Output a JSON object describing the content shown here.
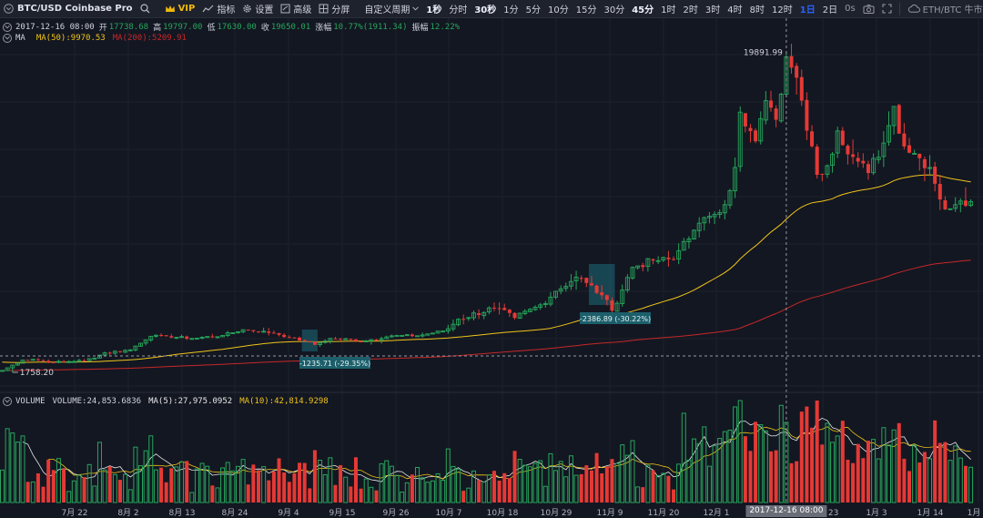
{
  "toolbar": {
    "symbol": "BTC/USD Coinbase Pro",
    "vip": "VIP",
    "indicators": "指标",
    "settings": "设置",
    "advanced": "高级",
    "split": "分屏",
    "custom_period": "自定义周期",
    "intervals": [
      {
        "label": "1秒",
        "state": "strong"
      },
      {
        "label": "分时",
        "state": "normal"
      },
      {
        "label": "30秒",
        "state": "strong"
      },
      {
        "label": "1分",
        "state": "normal"
      },
      {
        "label": "5分",
        "state": "normal"
      },
      {
        "label": "10分",
        "state": "normal"
      },
      {
        "label": "15分",
        "state": "normal"
      },
      {
        "label": "30分",
        "state": "normal"
      },
      {
        "label": "45分",
        "state": "strong"
      },
      {
        "label": "1时",
        "state": "normal"
      },
      {
        "label": "2时",
        "state": "normal"
      },
      {
        "label": "3时",
        "state": "normal"
      },
      {
        "label": "4时",
        "state": "normal"
      },
      {
        "label": "8时",
        "state": "normal"
      },
      {
        "label": "12时",
        "state": "normal"
      },
      {
        "label": "1日",
        "state": "active"
      },
      {
        "label": "2日",
        "state": "normal"
      }
    ],
    "countdown": "0s",
    "pair_switch": "ETH/BTC 牛市",
    "colors": {
      "active_interval": "#2962ff",
      "vip": "#f0b90b"
    }
  },
  "ohlc_legend": {
    "datetime": "2017-12-16 08:00",
    "open_label": "开",
    "open": "17738.68",
    "high_label": "高",
    "high": "19797.00",
    "low_label": "低",
    "low": "17630.00",
    "close_label": "收",
    "close": "19650.01",
    "change_label": "涨幅",
    "change": "10.77%(1911.34)",
    "amplitude_label": "振幅",
    "amplitude": "12.22%"
  },
  "ma_legend": {
    "name": "MA",
    "ma50": "MA(50):9970.53",
    "ma200": "MA(200):5209.91",
    "ma50_color": "#f0c419",
    "ma200_color": "#c62828"
  },
  "volume_legend": {
    "name": "VOLUME",
    "volume": "VOLUME:24,853.6836",
    "ma5": "MA(5):27,975.0952",
    "ma10": "MA(10):42,814.9298",
    "ma5_color": "#e8e8e8",
    "ma10_color": "#f0c419"
  },
  "annotations": {
    "high_marker": "19891.99",
    "low_marker": "1758.20",
    "range1": "-1235.71 (-29.35%)",
    "range2": "-2386.89 (-30.22%)"
  },
  "x_axis": {
    "labels": [
      "7月 22",
      "8月 2",
      "8月 13",
      "8月 24",
      "9月 4",
      "9月 15",
      "9月 26",
      "10月 7",
      "10月 18",
      "10月 29",
      "11月 9",
      "11月 20",
      "12月 1",
      "12月 23",
      "1月 3",
      "1月 14",
      "1月"
    ],
    "crosshair_label": "2017-12-16 08:00"
  },
  "chart_data": {
    "type": "candlestick",
    "title": "BTC/USD Coinbase Pro",
    "interval": "1日",
    "date_range": [
      "2017-07-16",
      "2018-01-21"
    ],
    "price_range": [
      1500,
      21000
    ],
    "up_color": "#26a65b",
    "down_color": "#e53935",
    "extremes": {
      "high": 19891.99,
      "low": 1758.2
    },
    "crosshair": {
      "date": "2017-12-16",
      "open": 17738.68,
      "high": 19797.0,
      "low": 17630.0,
      "close": 19650.01
    },
    "measured_ranges": [
      {
        "label": "-1235.71 (-29.35%)",
        "start": "2017-09-13",
        "end": "2017-09-15"
      },
      {
        "label": "-2386.89 (-30.22%)",
        "start": "2017-11-08",
        "end": "2017-11-12"
      }
    ],
    "anchors": [
      [
        "2017-07-16",
        1910
      ],
      [
        "2017-07-20",
        2750
      ],
      [
        "2017-07-22",
        2800
      ],
      [
        "2017-07-26",
        2560
      ],
      [
        "2017-08-01",
        2700
      ],
      [
        "2017-08-05",
        3230
      ],
      [
        "2017-08-10",
        3400
      ],
      [
        "2017-08-14",
        4300
      ],
      [
        "2017-08-17",
        4300
      ],
      [
        "2017-08-22",
        4100
      ],
      [
        "2017-08-28",
        4380
      ],
      [
        "2017-09-01",
        4900
      ],
      [
        "2017-09-07",
        4600
      ],
      [
        "2017-09-10",
        4200
      ],
      [
        "2017-09-13",
        3900
      ],
      [
        "2017-09-15",
        3700
      ],
      [
        "2017-09-18",
        4100
      ],
      [
        "2017-09-25",
        3920
      ],
      [
        "2017-09-30",
        4340
      ],
      [
        "2017-10-05",
        4350
      ],
      [
        "2017-10-10",
        4780
      ],
      [
        "2017-10-13",
        5450
      ],
      [
        "2017-10-20",
        5990
      ],
      [
        "2017-10-24",
        5510
      ],
      [
        "2017-10-29",
        6130
      ],
      [
        "2017-11-01",
        6750
      ],
      [
        "2017-11-05",
        7400
      ],
      [
        "2017-11-07",
        7130
      ],
      [
        "2017-11-10",
        6570
      ],
      [
        "2017-11-12",
        5860
      ],
      [
        "2017-11-16",
        7850
      ],
      [
        "2017-11-20",
        8200
      ],
      [
        "2017-11-24",
        8250
      ],
      [
        "2017-11-26",
        9300
      ],
      [
        "2017-11-28",
        9950
      ],
      [
        "2017-12-01",
        10850
      ],
      [
        "2017-12-04",
        11600
      ],
      [
        "2017-12-06",
        13700
      ],
      [
        "2017-12-07",
        16800
      ],
      [
        "2017-12-08",
        16050
      ],
      [
        "2017-12-10",
        15200
      ],
      [
        "2017-12-12",
        17400
      ],
      [
        "2017-12-14",
        16400
      ],
      [
        "2017-12-15",
        17740
      ],
      [
        "2017-12-16",
        19650
      ],
      [
        "2017-12-17",
        19100
      ],
      [
        "2017-12-19",
        17400
      ],
      [
        "2017-12-22",
        13300
      ],
      [
        "2017-12-24",
        13800
      ],
      [
        "2017-12-26",
        15800
      ],
      [
        "2017-12-29",
        14300
      ],
      [
        "2018-01-01",
        13400
      ],
      [
        "2018-01-04",
        15100
      ],
      [
        "2018-01-06",
        17100
      ],
      [
        "2018-01-08",
        14900
      ],
      [
        "2018-01-10",
        14500
      ],
      [
        "2018-01-13",
        13700
      ],
      [
        "2018-01-16",
        11300
      ],
      [
        "2018-01-18",
        11600
      ],
      [
        "2018-01-21",
        11800
      ]
    ]
  }
}
